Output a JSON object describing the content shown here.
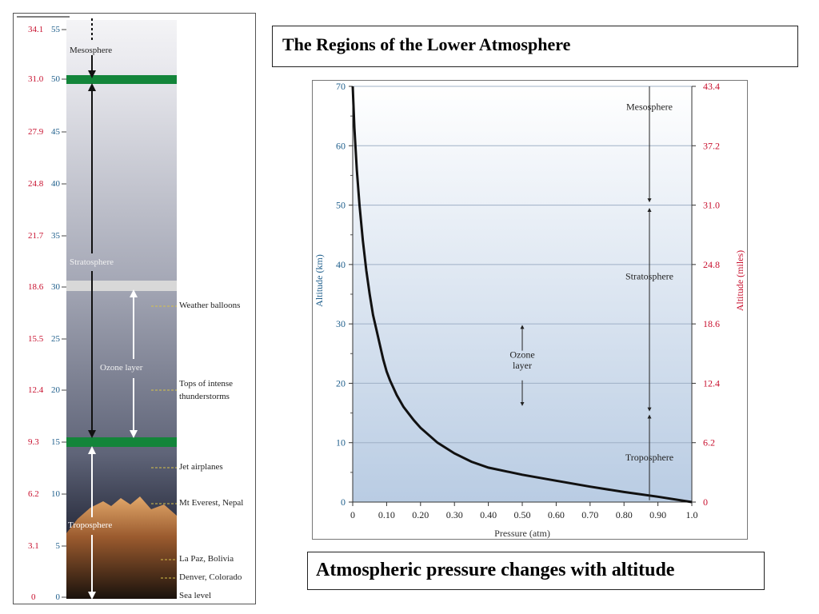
{
  "title": "The Regions of the Lower Atmosphere",
  "caption": "Atmospheric pressure changes with altitude",
  "colors": {
    "km_axis": "#1f5f8c",
    "miles_axis": "#c8102e",
    "boundary": "#13853a",
    "ozone_band": "#d8d8d8",
    "curve": "#111111"
  },
  "column": {
    "km_ticks": [
      "55",
      "50",
      "45",
      "40",
      "35",
      "30",
      "25",
      "20",
      "15",
      "10",
      "5",
      "0"
    ],
    "mile_ticks": [
      "34.1",
      "31.0",
      "27.9",
      "24.8",
      "21.7",
      "18.6",
      "15.5",
      "12.4",
      "9.3",
      "6.2",
      "3.1",
      "0"
    ],
    "layers": {
      "mesosphere": "Mesosphere",
      "stratosphere": "Stratosphere",
      "ozone": "Ozone layer",
      "troposphere": "Troposphere"
    },
    "markers": [
      "Weather balloons",
      "Tops of intense thunderstorms",
      "Jet airplanes",
      "Mt Everest, Nepal",
      "La Paz, Bolivia",
      "Denver, Colorado",
      "Sea level"
    ]
  },
  "chart_data": {
    "type": "line",
    "xlabel": "Pressure (atm)",
    "ylabel": "Altitude (km)",
    "ylabel_right": "Altitude (miles)",
    "xlim": [
      0,
      1.0
    ],
    "ylim": [
      0,
      70
    ],
    "x_ticks": [
      "0",
      "0.10",
      "0.20",
      "0.30",
      "0.40",
      "0.50",
      "0.60",
      "0.70",
      "0.80",
      "0.90",
      "1.0"
    ],
    "y_ticks": [
      "0",
      "10",
      "20",
      "30",
      "40",
      "50",
      "60",
      "70"
    ],
    "y_right_ticks": [
      "0",
      "6.2",
      "12.4",
      "18.6",
      "24.8",
      "31.0",
      "37.2",
      "43.4"
    ],
    "grid": true,
    "series": [
      {
        "x": [
          0.0,
          0.005,
          0.012,
          0.02,
          0.03,
          0.04,
          0.05,
          0.06,
          0.07,
          0.08,
          0.09,
          0.1,
          0.11,
          0.13,
          0.15,
          0.18,
          0.2,
          0.25,
          0.3,
          0.35,
          0.4,
          0.5,
          0.6,
          0.7,
          0.8,
          0.9,
          1.0
        ],
        "y": [
          70,
          63,
          56,
          50,
          44,
          39,
          35,
          31.5,
          29,
          26.5,
          24,
          22,
          20.5,
          18,
          16,
          13.8,
          12.5,
          10,
          8.2,
          6.8,
          5.8,
          4.6,
          3.6,
          2.6,
          1.7,
          0.9,
          0
        ]
      }
    ],
    "annotations": {
      "mesosphere": "Mesosphere",
      "stratosphere": "Stratosphere",
      "troposphere": "Troposphere",
      "ozone_line1": "Ozone",
      "ozone_line2": "layer"
    }
  }
}
